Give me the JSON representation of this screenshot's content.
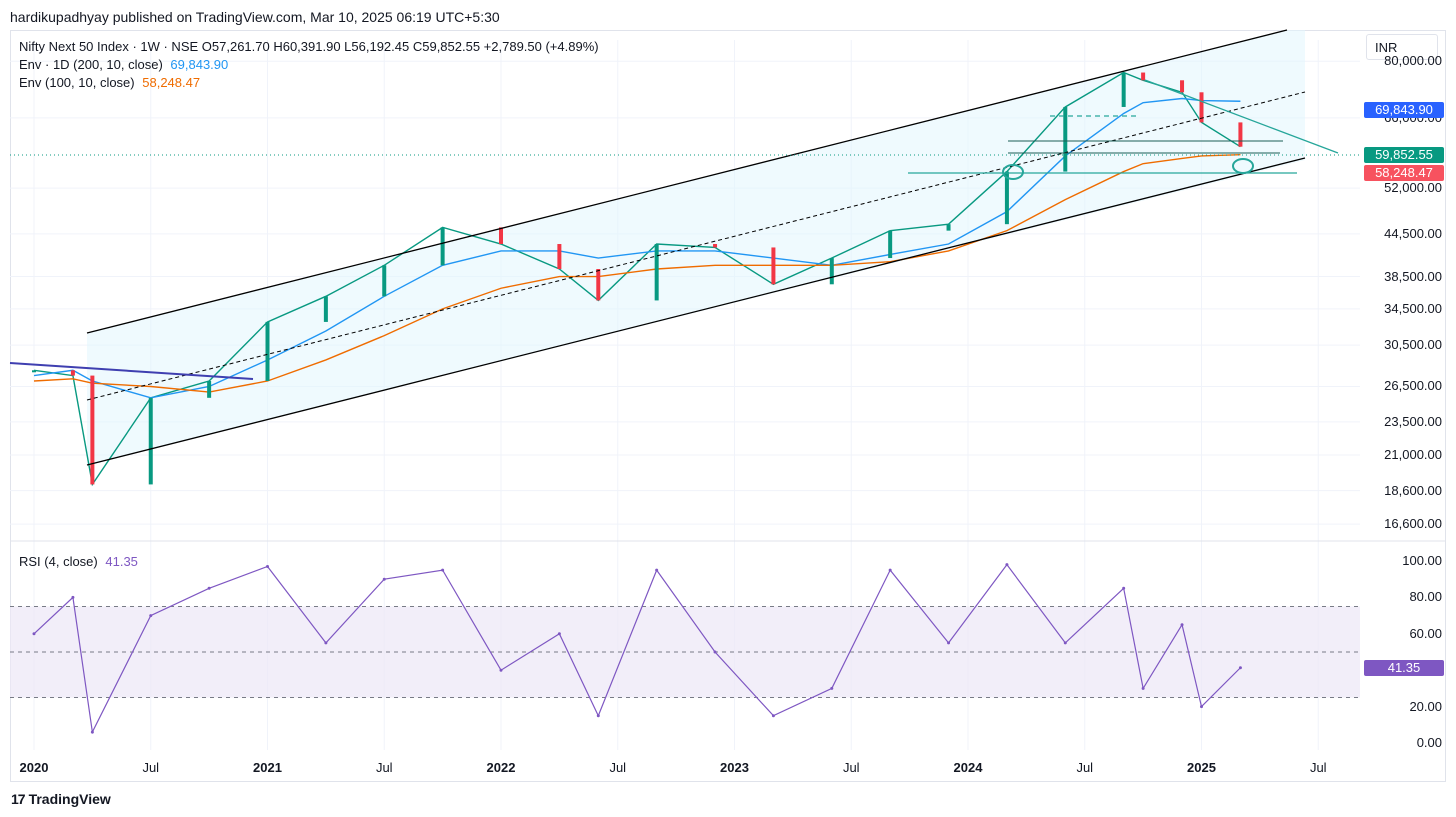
{
  "header": {
    "published": "hardikupadhyay published on TradingView.com, Mar 10, 2025 06:19 UTC+5:30"
  },
  "legend": {
    "symbol_line": "Nifty Next 50 Index · 1W · NSE  O57,261.70  H60,391.90  L56,192.45  C59,852.55  +2,789.50 (+4.89%)",
    "env1_label": "Env · 1D (200, 10, close)",
    "env1_value": "69,843.90",
    "env2_label": "Env (100, 10, close)",
    "env2_value": "58,248.47",
    "rsi_label": "RSI (4, close)",
    "rsi_value": "41.35"
  },
  "currency": "INR",
  "price_axis": {
    "ticks": [
      "80,000.00",
      "66,000.00",
      "52,000.00",
      "44,500.00",
      "38,500.00",
      "34,500.00",
      "30,500.00",
      "26,500.00",
      "23,500.00",
      "21,000.00",
      "18,600.00",
      "16,600.00"
    ],
    "tags": [
      {
        "label": "69,843.90",
        "color": "#2962ff"
      },
      {
        "label": "59,852.55",
        "color": "#089981"
      },
      {
        "label": "58,248.47",
        "color": "#f7525f"
      }
    ]
  },
  "rsi_axis": {
    "ticks": [
      "100.00",
      "80.00",
      "60.00",
      "20.00",
      "0.00"
    ],
    "tag": "41.35"
  },
  "time_axis": [
    {
      "label": "2020",
      "year": true
    },
    {
      "label": "Jul",
      "year": false
    },
    {
      "label": "2021",
      "year": true
    },
    {
      "label": "Jul",
      "year": false
    },
    {
      "label": "2022",
      "year": true
    },
    {
      "label": "Jul",
      "year": false
    },
    {
      "label": "2023",
      "year": true
    },
    {
      "label": "Jul",
      "year": false
    },
    {
      "label": "2024",
      "year": true
    },
    {
      "label": "Jul",
      "year": false
    },
    {
      "label": "2025",
      "year": true
    },
    {
      "label": "Jul",
      "year": false
    }
  ],
  "footer": {
    "brand": "TradingView"
  },
  "colors": {
    "up": "#089981",
    "down": "#f23645",
    "env1": "#2196f3",
    "env2": "#ef6c00",
    "rsi": "#7e57c2",
    "channel": "#000000"
  },
  "chart_data": {
    "type": "line",
    "title": "Nifty Next 50 Index · 1W · NSE",
    "scale": "log",
    "ylim": [
      16000,
      86000
    ],
    "x": [
      "2020-01",
      "2020-03",
      "2020-04",
      "2020-07",
      "2020-10",
      "2021-01",
      "2021-04",
      "2021-07",
      "2021-10",
      "2022-01",
      "2022-04",
      "2022-06",
      "2022-09",
      "2022-12",
      "2023-03",
      "2023-06",
      "2023-09",
      "2023-12",
      "2024-03",
      "2024-06",
      "2024-09",
      "2024-10",
      "2024-12",
      "2025-01",
      "2025-03"
    ],
    "series": [
      {
        "name": "Price (weekly close)",
        "values": [
          28000,
          27500,
          19000,
          25500,
          27000,
          33000,
          36000,
          40000,
          45500,
          43000,
          39500,
          35500,
          43000,
          42500,
          37500,
          41000,
          45000,
          46000,
          55000,
          68500,
          77000,
          75000,
          72000,
          65000,
          59852.55
        ]
      },
      {
        "name": "Env · 1D (200, 10, close)",
        "values": [
          27500,
          28000,
          27000,
          25500,
          26500,
          29000,
          32000,
          36000,
          40000,
          42000,
          42000,
          41000,
          42000,
          42000,
          41000,
          40000,
          41500,
          43000,
          48000,
          58000,
          67000,
          69500,
          70500,
          70000,
          69843.9
        ]
      },
      {
        "name": "Env (100, 10, close)",
        "values": [
          27000,
          27200,
          26800,
          26500,
          26000,
          27000,
          29000,
          31500,
          34500,
          37000,
          38500,
          38500,
          39500,
          40000,
          40000,
          40000,
          40500,
          42000,
          45000,
          50000,
          55000,
          56500,
          57500,
          58000,
          58248.47
        ]
      }
    ],
    "rsi": {
      "name": "RSI (4, close)",
      "levels": [
        70,
        50,
        30
      ],
      "x": [
        "2020-01",
        "2020-03",
        "2020-04",
        "2020-07",
        "2020-10",
        "2021-01",
        "2021-04",
        "2021-07",
        "2021-10",
        "2022-01",
        "2022-04",
        "2022-06",
        "2022-09",
        "2022-12",
        "2023-03",
        "2023-06",
        "2023-09",
        "2023-12",
        "2024-03",
        "2024-06",
        "2024-09",
        "2024-10",
        "2024-12",
        "2025-01",
        "2025-03"
      ],
      "values": [
        60,
        80,
        6,
        70,
        85,
        97,
        55,
        90,
        95,
        40,
        60,
        15,
        95,
        50,
        15,
        30,
        95,
        55,
        98,
        55,
        85,
        30,
        65,
        20,
        41.35
      ]
    },
    "annotations": [
      "ascending channel",
      "dashed midline",
      "descending trendline",
      "horizontal support lines"
    ]
  }
}
